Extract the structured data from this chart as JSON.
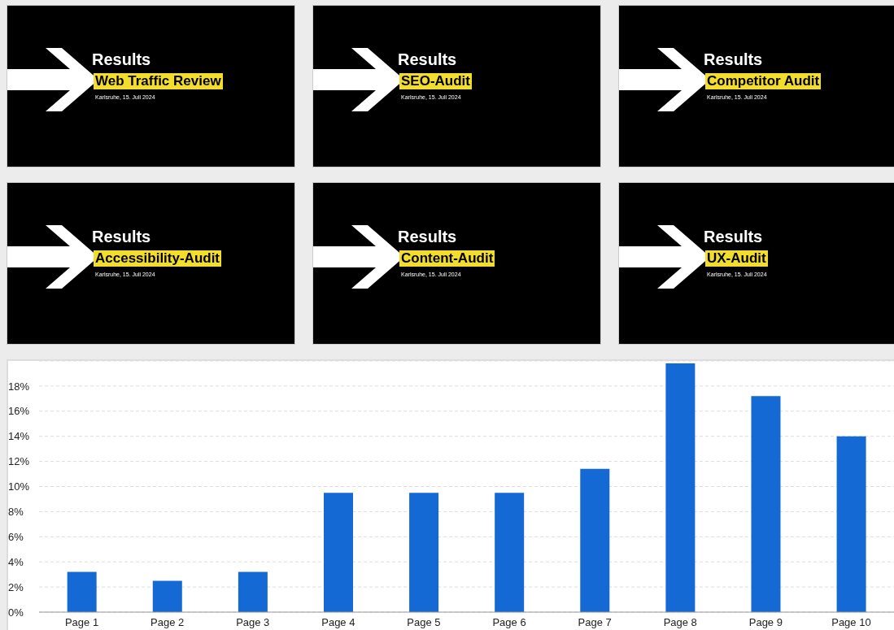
{
  "chart_data": [
    {
      "type": "other",
      "title": "Results",
      "subtitle": "Web Traffic Review",
      "annotations": [
        "Karlsruhe, 15. Juli 2024"
      ]
    },
    {
      "type": "other",
      "title": "Results",
      "subtitle": "SEO-Audit",
      "annotations": [
        "Karlsruhe, 15. Juli 2024"
      ]
    },
    {
      "type": "other",
      "title": "Results",
      "subtitle": "Competitor Audit",
      "annotations": [
        "Karlsruhe, 15. Juli 2024"
      ]
    },
    {
      "type": "other",
      "title": "Results",
      "subtitle": "Accessibility-Audit",
      "annotations": [
        "Karlsruhe, 15. Juli 2024"
      ]
    },
    {
      "type": "other",
      "title": "Results",
      "subtitle": "Content-Audit",
      "annotations": [
        "Karlsruhe, 15. Juli 2024"
      ]
    },
    {
      "type": "other",
      "title": "Results",
      "subtitle": "UX-Audit",
      "annotations": [
        "Karlsruhe, 15. Juli 2024"
      ]
    },
    {
      "type": "bar",
      "categories": [
        "Page 1",
        "Page 2",
        "Page 3",
        "Page 4",
        "Page 5",
        "Page 6",
        "Page 7",
        "Page 8",
        "Page 9",
        "Page 10"
      ],
      "values": [
        3.2,
        2.5,
        3.2,
        9.5,
        9.5,
        9.5,
        11.4,
        19.8,
        17.2,
        14.0
      ],
      "color": "#1469d4",
      "ylim": [
        0,
        20
      ],
      "yticks": [
        {
          "value": 0,
          "label": "0%"
        },
        {
          "value": 2,
          "label": "2%"
        },
        {
          "value": 4,
          "label": "4%"
        },
        {
          "value": 6,
          "label": "6%"
        },
        {
          "value": 8,
          "label": "8%"
        },
        {
          "value": 10,
          "label": "10%"
        },
        {
          "value": 12,
          "label": "12%"
        },
        {
          "value": 14,
          "label": "14%"
        },
        {
          "value": 16,
          "label": "16%"
        },
        {
          "value": 18,
          "label": "18%"
        }
      ],
      "grid": "y"
    }
  ]
}
